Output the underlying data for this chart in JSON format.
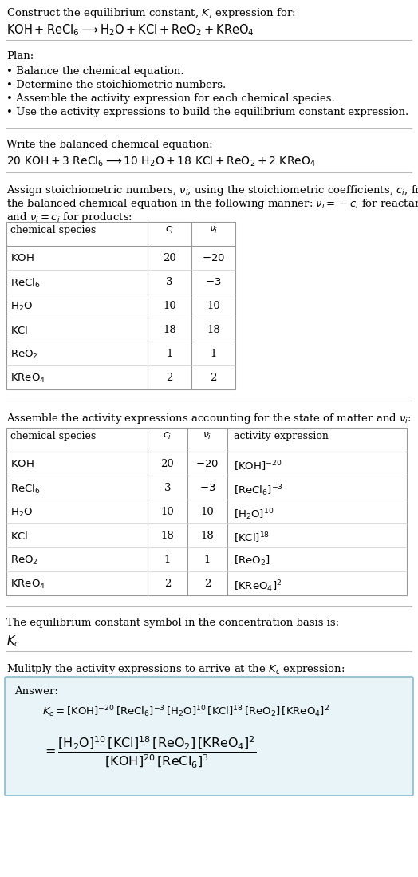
{
  "title_line1": "Construct the equilibrium constant, $K$, expression for:",
  "title_line2": "$\\mathrm{KOH + ReCl_6 \\longrightarrow H_2O + KCl + ReO_2 + KReO_4}$",
  "plan_header": "Plan:",
  "plan_items": [
    "• Balance the chemical equation.",
    "• Determine the stoichiometric numbers.",
    "• Assemble the activity expression for each chemical species.",
    "• Use the activity expressions to build the equilibrium constant expression."
  ],
  "balanced_header": "Write the balanced chemical equation:",
  "balanced_eq": "$\\mathrm{20\\ KOH + 3\\ ReCl_6 \\longrightarrow 10\\ H_2O + 18\\ KCl + ReO_2 + 2\\ KReO_4}$",
  "stoich_header1": "Assign stoichiometric numbers, $\\nu_i$, using the stoichiometric coefficients, $c_i$, from",
  "stoich_header2": "the balanced chemical equation in the following manner: $\\nu_i = -c_i$ for reactants",
  "stoich_header3": "and $\\nu_i = c_i$ for products:",
  "table1_col0_header": "chemical species",
  "table1_col1_header": "$c_i$",
  "table1_col2_header": "$\\nu_i$",
  "table1_data": [
    [
      "$\\mathrm{KOH}$",
      "20",
      "$-20$"
    ],
    [
      "$\\mathrm{ReCl_6}$",
      "3",
      "$-3$"
    ],
    [
      "$\\mathrm{H_2O}$",
      "10",
      "10"
    ],
    [
      "$\\mathrm{KCl}$",
      "18",
      "18"
    ],
    [
      "$\\mathrm{ReO_2}$",
      "1",
      "1"
    ],
    [
      "$\\mathrm{KReO_4}$",
      "2",
      "2"
    ]
  ],
  "activity_header": "Assemble the activity expressions accounting for the state of matter and $\\nu_i$:",
  "table2_col0_header": "chemical species",
  "table2_col1_header": "$c_i$",
  "table2_col2_header": "$\\nu_i$",
  "table2_col3_header": "activity expression",
  "table2_data": [
    [
      "$\\mathrm{KOH}$",
      "20",
      "$-20$",
      "$[\\mathrm{KOH}]^{-20}$"
    ],
    [
      "$\\mathrm{ReCl_6}$",
      "3",
      "$-3$",
      "$[\\mathrm{ReCl_6}]^{-3}$"
    ],
    [
      "$\\mathrm{H_2O}$",
      "10",
      "10",
      "$[\\mathrm{H_2O}]^{10}$"
    ],
    [
      "$\\mathrm{KCl}$",
      "18",
      "18",
      "$[\\mathrm{KCl}]^{18}$"
    ],
    [
      "$\\mathrm{ReO_2}$",
      "1",
      "1",
      "$[\\mathrm{ReO_2}]$"
    ],
    [
      "$\\mathrm{KReO_4}$",
      "2",
      "2",
      "$[\\mathrm{KReO_4}]^2$"
    ]
  ],
  "kc_header": "The equilibrium constant symbol in the concentration basis is:",
  "kc_symbol": "$K_c$",
  "multiply_header": "Mulitply the activity expressions to arrive at the $K_c$ expression:",
  "answer_label": "Answer:",
  "answer_line1": "$K_c = [\\mathrm{KOH}]^{-20}\\,[\\mathrm{ReCl_6}]^{-3}\\,[\\mathrm{H_2O}]^{10}\\,[\\mathrm{KCl}]^{18}\\,[\\mathrm{ReO_2}]\\,[\\mathrm{KReO_4}]^2$",
  "answer_eq_lhs": "$= \\dfrac{[\\mathrm{H_2O}]^{10}\\,[\\mathrm{KCl}]^{18}\\,[\\mathrm{ReO_2}]\\,[\\mathrm{KReO_4}]^2}{[\\mathrm{KOH}]^{20}\\,[\\mathrm{ReCl_6}]^3}$",
  "bg_color": "#ffffff",
  "answer_box_bg": "#e8f4f8",
  "answer_box_border": "#88bbd0",
  "divider_color": "#bbbbbb",
  "font_size": 9.5,
  "table_font_size": 9.5
}
